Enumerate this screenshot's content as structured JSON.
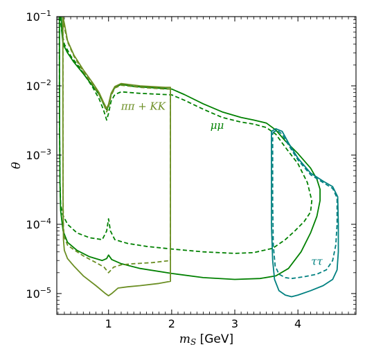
{
  "chart_data": {
    "type": "line",
    "title": "",
    "xlabel": "m_S [GeV]",
    "ylabel": "θ",
    "xlim": [
      0.18,
      4.92
    ],
    "ylim": [
      5e-06,
      0.1
    ],
    "yscale": "log",
    "grid": false,
    "x_ticks": [
      {
        "value": 1,
        "label": "1"
      },
      {
        "value": 2,
        "label": "2"
      },
      {
        "value": 3,
        "label": "3"
      },
      {
        "value": 4,
        "label": "4"
      }
    ],
    "y_ticks": [
      {
        "value": 1e-05,
        "base": "10",
        "exp": "−5"
      },
      {
        "value": 0.0001,
        "base": "10",
        "exp": "−4"
      },
      {
        "value": 0.001,
        "base": "10",
        "exp": "−3"
      },
      {
        "value": 0.01,
        "base": "10",
        "exp": "−2"
      },
      {
        "value": 0.1,
        "base": "10",
        "exp": "−1"
      }
    ],
    "annotations": [
      {
        "text": "ππ + KK",
        "x": 1.55,
        "y": 0.0045,
        "color": "#6b8e23"
      },
      {
        "text": "μμ",
        "x": 2.72,
        "y": 0.0024,
        "color": "#008000"
      },
      {
        "text": "ττ",
        "x": 4.3,
        "y": 2.6e-05,
        "color": "#008080"
      }
    ],
    "series": [
      {
        "channel": "μμ",
        "style": "solid",
        "color": "#008000",
        "points": [
          [
            0.25,
            0.1
          ],
          [
            0.26,
            0.06
          ],
          [
            0.28,
            0.04
          ],
          [
            0.35,
            0.03
          ],
          [
            0.45,
            0.022
          ],
          [
            0.6,
            0.015
          ],
          [
            0.75,
            0.01
          ],
          [
            0.85,
            0.0075
          ],
          [
            0.92,
            0.0055
          ],
          [
            0.97,
            0.0045
          ],
          [
            1.0,
            0.0052
          ],
          [
            1.04,
            0.0075
          ],
          [
            1.1,
            0.0095
          ],
          [
            1.2,
            0.0105
          ],
          [
            1.4,
            0.0098
          ],
          [
            1.7,
            0.0094
          ],
          [
            2.0,
            0.009
          ],
          [
            2.2,
            0.0075
          ],
          [
            2.5,
            0.0055
          ],
          [
            2.8,
            0.0042
          ],
          [
            3.1,
            0.0035
          ],
          [
            3.3,
            0.0032
          ],
          [
            3.5,
            0.0029
          ],
          [
            3.65,
            0.0023
          ],
          [
            3.8,
            0.0016
          ],
          [
            4.0,
            0.00105
          ],
          [
            4.2,
            0.00065
          ],
          [
            4.3,
            0.00045
          ],
          [
            4.35,
            0.00032
          ],
          [
            4.35,
            0.00022
          ],
          [
            4.3,
            0.00013
          ],
          [
            4.2,
            7.5e-05
          ],
          [
            4.05,
            4e-05
          ],
          [
            3.85,
            2.3e-05
          ],
          [
            3.65,
            1.8e-05
          ],
          [
            3.4,
            1.65e-05
          ],
          [
            3.0,
            1.6e-05
          ],
          [
            2.5,
            1.7e-05
          ],
          [
            2.0,
            1.95e-05
          ],
          [
            1.5,
            2.3e-05
          ],
          [
            1.2,
            2.7e-05
          ],
          [
            1.05,
            3.1e-05
          ],
          [
            1.0,
            3.6e-05
          ],
          [
            0.97,
            3.2e-05
          ],
          [
            0.9,
            3e-05
          ],
          [
            0.7,
            3.4e-05
          ],
          [
            0.5,
            4.2e-05
          ],
          [
            0.35,
            5.5e-05
          ],
          [
            0.28,
            8e-05
          ],
          [
            0.24,
            0.00016
          ],
          [
            0.23,
            0.0004
          ],
          [
            0.225,
            0.002
          ],
          [
            0.223,
            0.01
          ],
          [
            0.222,
            0.1
          ]
        ]
      },
      {
        "channel": "μμ",
        "style": "dashed",
        "color": "#008000",
        "points": [
          [
            0.23,
            0.1
          ],
          [
            0.26,
            0.06
          ],
          [
            0.3,
            0.04
          ],
          [
            0.4,
            0.027
          ],
          [
            0.55,
            0.018
          ],
          [
            0.75,
            0.0095
          ],
          [
            0.85,
            0.0065
          ],
          [
            0.92,
            0.0045
          ],
          [
            0.97,
            0.0032
          ],
          [
            1.0,
            0.004
          ],
          [
            1.04,
            0.006
          ],
          [
            1.1,
            0.0075
          ],
          [
            1.2,
            0.0082
          ],
          [
            1.5,
            0.0078
          ],
          [
            2.0,
            0.0074
          ],
          [
            2.2,
            0.0062
          ],
          [
            2.5,
            0.0046
          ],
          [
            2.8,
            0.0035
          ],
          [
            3.1,
            0.003
          ],
          [
            3.3,
            0.0028
          ],
          [
            3.5,
            0.0025
          ],
          [
            3.65,
            0.002
          ],
          [
            3.8,
            0.0013
          ],
          [
            4.0,
            0.00075
          ],
          [
            4.15,
            0.0004
          ],
          [
            4.22,
            0.00022
          ],
          [
            4.2,
            0.00015
          ],
          [
            4.1,
            0.00011
          ],
          [
            3.95,
            8e-05
          ],
          [
            3.8,
            6e-05
          ],
          [
            3.6,
            4.5e-05
          ],
          [
            3.3,
            3.9e-05
          ],
          [
            3.0,
            3.8e-05
          ],
          [
            2.5,
            4e-05
          ],
          [
            2.0,
            4.4e-05
          ],
          [
            1.6,
            4.8e-05
          ],
          [
            1.3,
            5.3e-05
          ],
          [
            1.1,
            6e-05
          ],
          [
            1.03,
            8e-05
          ],
          [
            1.0,
            0.00012
          ],
          [
            0.97,
            8e-05
          ],
          [
            0.9,
            6e-05
          ],
          [
            0.7,
            6.4e-05
          ],
          [
            0.5,
            7.5e-05
          ],
          [
            0.35,
            0.0001
          ],
          [
            0.27,
            0.00014
          ],
          [
            0.24,
            0.0002
          ],
          [
            0.23,
            0.0004
          ],
          [
            0.225,
            0.002
          ],
          [
            0.222,
            0.01
          ],
          [
            0.222,
            0.1
          ]
        ]
      },
      {
        "channel": "ππ + KK",
        "style": "solid",
        "color": "#6b8e23",
        "points": [
          [
            0.275,
            0.1
          ],
          [
            0.3,
            0.08
          ],
          [
            0.35,
            0.045
          ],
          [
            0.45,
            0.028
          ],
          [
            0.6,
            0.017
          ],
          [
            0.75,
            0.011
          ],
          [
            0.85,
            0.008
          ],
          [
            0.92,
            0.0058
          ],
          [
            0.97,
            0.0047
          ],
          [
            1.0,
            0.0054
          ],
          [
            1.04,
            0.0078
          ],
          [
            1.1,
            0.0098
          ],
          [
            1.2,
            0.0108
          ],
          [
            1.5,
            0.01
          ],
          [
            1.9,
            0.0095
          ],
          [
            1.98,
            0.0095
          ],
          [
            1.98,
            0.0035
          ],
          [
            1.98,
            0.0003
          ],
          [
            1.98,
            1.5e-05
          ],
          [
            1.8,
            1.4e-05
          ],
          [
            1.5,
            1.3e-05
          ],
          [
            1.3,
            1.25e-05
          ],
          [
            1.15,
            1.2e-05
          ],
          [
            1.05,
            1e-05
          ],
          [
            1.0,
            9.3e-06
          ],
          [
            0.95,
            1e-05
          ],
          [
            0.8,
            1.3e-05
          ],
          [
            0.6,
            1.8e-05
          ],
          [
            0.45,
            2.5e-05
          ],
          [
            0.35,
            3.2e-05
          ],
          [
            0.3,
            4.2e-05
          ],
          [
            0.285,
            6e-05
          ],
          [
            0.28,
            0.00015
          ],
          [
            0.278,
            0.002
          ],
          [
            0.277,
            0.05
          ],
          [
            0.277,
            0.1
          ]
        ]
      },
      {
        "channel": "ππ + KK",
        "style": "dashed",
        "color": "#6b8e23",
        "points": [
          [
            0.278,
            0.1
          ],
          [
            0.3,
            0.07
          ],
          [
            0.35,
            0.043
          ],
          [
            0.45,
            0.027
          ],
          [
            0.6,
            0.016
          ],
          [
            0.75,
            0.0105
          ],
          [
            0.85,
            0.0075
          ],
          [
            0.92,
            0.0055
          ],
          [
            0.97,
            0.0042
          ],
          [
            1.0,
            0.0048
          ],
          [
            1.04,
            0.0072
          ],
          [
            1.1,
            0.0093
          ],
          [
            1.2,
            0.0102
          ],
          [
            1.5,
            0.0095
          ],
          [
            1.9,
            0.009
          ],
          [
            1.98,
            0.009
          ],
          [
            1.98,
            0.003
          ],
          [
            1.98,
            0.0003
          ],
          [
            1.98,
            3e-05
          ],
          [
            1.7,
            2.8e-05
          ],
          [
            1.4,
            2.7e-05
          ],
          [
            1.2,
            2.6e-05
          ],
          [
            1.08,
            2.4e-05
          ],
          [
            1.0,
            2e-05
          ],
          [
            0.93,
            2.4e-05
          ],
          [
            0.8,
            2.8e-05
          ],
          [
            0.6,
            3.5e-05
          ],
          [
            0.45,
            4.3e-05
          ],
          [
            0.35,
            5e-05
          ],
          [
            0.3,
            6.5e-05
          ],
          [
            0.285,
            9e-05
          ],
          [
            0.28,
            0.00025
          ],
          [
            0.278,
            0.002
          ],
          [
            0.278,
            0.1
          ]
        ]
      },
      {
        "channel": "ττ",
        "style": "solid",
        "color": "#008080",
        "points": [
          [
            3.58,
            0.0022
          ],
          [
            3.65,
            0.0024
          ],
          [
            3.75,
            0.0022
          ],
          [
            3.85,
            0.0015
          ],
          [
            4.0,
            0.0009
          ],
          [
            4.2,
            0.00055
          ],
          [
            4.4,
            0.00042
          ],
          [
            4.55,
            0.00035
          ],
          [
            4.63,
            0.00025
          ],
          [
            4.64,
            0.0001
          ],
          [
            4.64,
            4e-05
          ],
          [
            4.62,
            2.2e-05
          ],
          [
            4.55,
            1.6e-05
          ],
          [
            4.4,
            1.3e-05
          ],
          [
            4.2,
            1.1e-05
          ],
          [
            4.0,
            9.5e-06
          ],
          [
            3.9,
            9e-06
          ],
          [
            3.8,
            9.5e-06
          ],
          [
            3.7,
            1.1e-05
          ],
          [
            3.63,
            1.6e-05
          ],
          [
            3.6,
            3e-05
          ],
          [
            3.58,
            0.0001
          ],
          [
            3.58,
            0.0005
          ],
          [
            3.58,
            0.0022
          ]
        ]
      },
      {
        "channel": "ττ",
        "style": "dashed",
        "color": "#008080",
        "points": [
          [
            3.6,
            0.0021
          ],
          [
            3.67,
            0.0023
          ],
          [
            3.75,
            0.002
          ],
          [
            3.85,
            0.0014
          ],
          [
            4.0,
            0.00085
          ],
          [
            4.2,
            0.00052
          ],
          [
            4.4,
            0.0004
          ],
          [
            4.55,
            0.00033
          ],
          [
            4.62,
            0.00024
          ],
          [
            4.62,
            0.0001
          ],
          [
            4.6,
            5e-05
          ],
          [
            4.55,
            3e-05
          ],
          [
            4.45,
            2.2e-05
          ],
          [
            4.3,
            1.9e-05
          ],
          [
            4.1,
            1.75e-05
          ],
          [
            3.9,
            1.65e-05
          ],
          [
            3.8,
            1.7e-05
          ],
          [
            3.7,
            1.9e-05
          ],
          [
            3.64,
            2.5e-05
          ],
          [
            3.61,
            5e-05
          ],
          [
            3.6,
            0.0002
          ],
          [
            3.6,
            0.0021
          ]
        ]
      }
    ]
  }
}
